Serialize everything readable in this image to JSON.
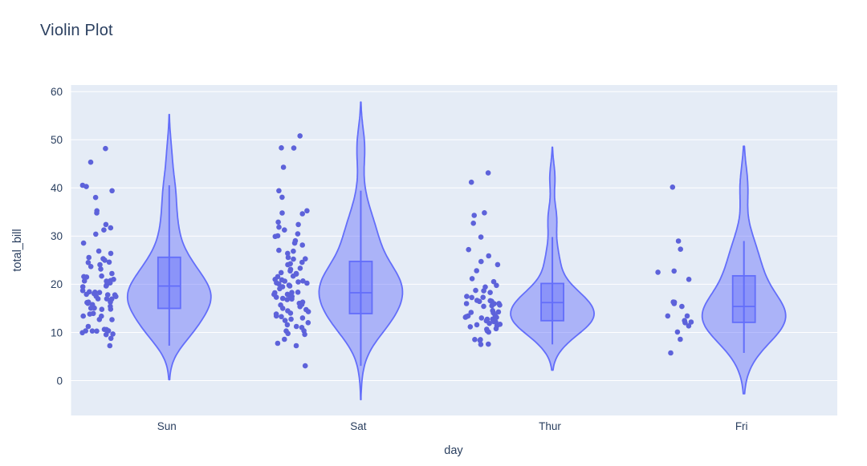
{
  "colors": {
    "page_bg": "#ffffff",
    "plot_bg": "#e5ecf6",
    "grid": "#ffffff",
    "text": "#2a3f5f",
    "accent": "#636efa",
    "violin_fill": "rgba(99,110,250,0.45)",
    "box_fill": "rgba(99,110,250,0.45)",
    "point": "#5d62da"
  },
  "chart_data": {
    "type": "violin",
    "title": "Violin Plot",
    "xlabel": "day",
    "ylabel": "total_bill",
    "categories": [
      "Sun",
      "Sat",
      "Thur",
      "Fri"
    ],
    "yticks": [
      0,
      10,
      20,
      30,
      40,
      50,
      60
    ],
    "ylim": [
      -7.2,
      61.4
    ],
    "grid": true,
    "legend_position": "none",
    "points_mode": "all points jittered to the left of each violin, box plot inside violin",
    "series": [
      {
        "name": "Sun",
        "n": 76,
        "box": {
          "q1": 14.99,
          "median": 19.63,
          "q3": 25.6,
          "whisker_low": 7.25,
          "whisker_high": 40.55
        },
        "values": [
          7.25,
          8.77,
          9.55,
          9.68,
          9.94,
          10.27,
          10.29,
          10.33,
          10.34,
          10.59,
          10.63,
          11.24,
          12.66,
          12.69,
          13.37,
          13.39,
          13.81,
          13.94,
          14.78,
          14.83,
          15.04,
          15.06,
          15.42,
          15.77,
          16.04,
          16.21,
          16.29,
          16.31,
          16.93,
          16.97,
          16.99,
          17.46,
          17.51,
          17.78,
          17.81,
          17.92,
          18.04,
          18.29,
          18.35,
          18.43,
          18.69,
          19.49,
          19.65,
          19.82,
          20.29,
          20.65,
          20.69,
          20.76,
          21.01,
          21.5,
          21.58,
          21.7,
          22.23,
          23.17,
          23.68,
          24.06,
          24.52,
          24.59,
          25.0,
          25.29,
          25.56,
          26.41,
          26.88,
          28.55,
          30.4,
          31.27,
          31.71,
          32.4,
          34.81,
          35.26,
          38.01,
          39.42,
          40.29,
          40.55,
          45.35,
          48.17
        ]
      },
      {
        "name": "Sat",
        "n": 87,
        "box": {
          "q1": 13.91,
          "median": 18.24,
          "q3": 24.74,
          "whisker_low": 3.07,
          "whisker_high": 39.42
        },
        "values": [
          3.07,
          7.25,
          7.74,
          8.58,
          9.6,
          9.78,
          10.29,
          10.34,
          11.02,
          11.24,
          11.59,
          12.02,
          12.48,
          12.76,
          13.0,
          13.27,
          13.42,
          13.81,
          14.0,
          14.31,
          14.48,
          14.73,
          15.01,
          15.36,
          15.69,
          15.81,
          16.04,
          16.29,
          16.82,
          16.93,
          17.07,
          17.31,
          17.46,
          17.59,
          17.89,
          17.92,
          18.24,
          18.29,
          18.35,
          19.08,
          19.49,
          19.65,
          19.82,
          20.08,
          20.23,
          48.33,
          20.29,
          20.49,
          20.65,
          20.69,
          20.92,
          21.01,
          21.58,
          21.7,
          22.12,
          22.23,
          22.42,
          22.76,
          23.1,
          23.33,
          24.06,
          24.27,
          24.55,
          25.21,
          25.28,
          25.56,
          26.41,
          26.86,
          27.05,
          28.15,
          28.55,
          29.03,
          29.93,
          30.06,
          30.46,
          31.27,
          31.85,
          32.4,
          32.9,
          34.63,
          34.81,
          35.26,
          38.07,
          39.42,
          44.3,
          48.27,
          50.81
        ]
      },
      {
        "name": "Thur",
        "n": 62,
        "box": {
          "q1": 12.44,
          "median": 16.2,
          "q3": 20.16,
          "whisker_low": 7.51,
          "whisker_high": 29.8
        },
        "values": [
          7.51,
          7.56,
          8.35,
          8.51,
          8.52,
          10.07,
          10.34,
          10.65,
          10.77,
          11.17,
          11.38,
          11.59,
          11.69,
          11.87,
          12.16,
          12.26,
          12.43,
          12.74,
          12.76,
          13.0,
          13.03,
          13.13,
          13.16,
          13.28,
          13.42,
          13.51,
          14.07,
          14.15,
          14.26,
          14.52,
          15.42,
          15.53,
          15.69,
          15.95,
          15.98,
          16.0,
          16.4,
          16.43,
          16.47,
          16.58,
          16.66,
          17.26,
          17.29,
          17.47,
          18.28,
          18.64,
          18.71,
          19.44,
          19.77,
          20.53,
          21.16,
          22.82,
          24.08,
          24.71,
          25.89,
          27.2,
          29.8,
          32.68,
          34.3,
          34.83,
          41.19,
          43.11
        ]
      },
      {
        "name": "Fri",
        "n": 19,
        "box": {
          "q1": 12.09,
          "median": 15.38,
          "q3": 21.75,
          "whisker_low": 5.75,
          "whisker_high": 28.97
        },
        "values": [
          5.75,
          8.58,
          10.09,
          11.35,
          12.03,
          12.16,
          12.46,
          13.42,
          13.42,
          15.38,
          15.98,
          16.27,
          16.32,
          21.01,
          22.49,
          22.75,
          27.28,
          28.97,
          40.17
        ]
      }
    ]
  }
}
